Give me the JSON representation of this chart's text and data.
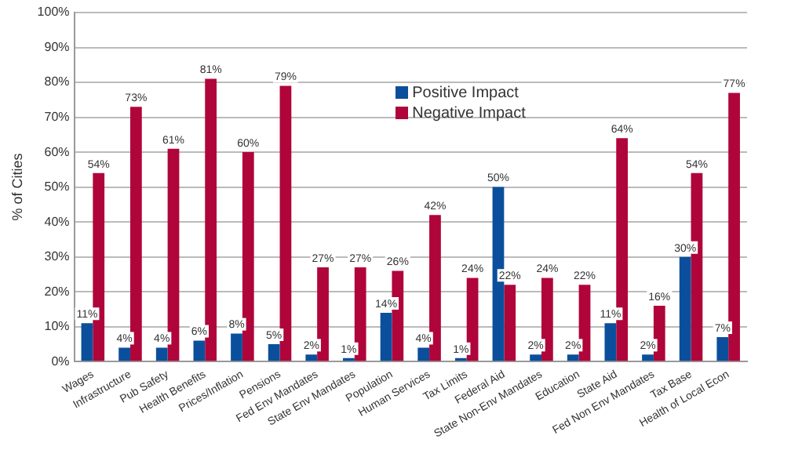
{
  "chart_data": {
    "type": "bar",
    "ylabel": "% of Cities",
    "categories": [
      "Wages",
      "Infrastructure",
      "Pub Safety",
      "Health Benefits",
      "Prices/Inflation",
      "Pensions",
      "Fed Env Mandates",
      "State Env Mandates",
      "Population",
      "Human Services",
      "Tax Limits",
      "Federal Aid",
      "State Non-Env Mandates",
      "Education",
      "State Aid",
      "Fed Non Env Mandates",
      "Tax Base",
      "Health of Local Econ"
    ],
    "series": [
      {
        "name": "Positive Impact",
        "color": "#0b4f9c",
        "values": [
          11,
          4,
          4,
          6,
          8,
          5,
          2,
          1,
          14,
          4,
          1,
          50,
          2,
          2,
          11,
          2,
          30,
          7
        ],
        "value_labels": [
          "11%",
          "4%",
          "4%",
          "6%",
          "8%",
          "5%",
          "2%",
          "1%",
          "14%",
          "4%",
          "1%",
          "50%",
          "2%",
          "2%",
          "11%",
          "2%",
          "30%",
          "7%"
        ]
      },
      {
        "name": "Negative Impact",
        "color": "#b0053a",
        "values": [
          54,
          73,
          61,
          81,
          60,
          79,
          27,
          27,
          26,
          42,
          24,
          22,
          24,
          22,
          64,
          16,
          54,
          77
        ],
        "value_labels": [
          "54%",
          "73%",
          "61%",
          "81%",
          "60%",
          "79%",
          "27%",
          "27%",
          "26%",
          "42%",
          "24%",
          "22%",
          "24%",
          "22%",
          "64%",
          "16%",
          "54%",
          "77%"
        ]
      }
    ],
    "ylim": [
      0,
      100
    ],
    "yticks": [
      {
        "value": 0,
        "label": "0%"
      },
      {
        "value": 10,
        "label": "10%"
      },
      {
        "value": 20,
        "label": "20%"
      },
      {
        "value": 30,
        "label": "30%"
      },
      {
        "value": 40,
        "label": "40%"
      },
      {
        "value": 50,
        "label": "50%"
      },
      {
        "value": 60,
        "label": "60%"
      },
      {
        "value": 70,
        "label": "70%"
      },
      {
        "value": 80,
        "label": "80%"
      },
      {
        "value": 90,
        "label": "90%"
      },
      {
        "value": 100,
        "label": "100%"
      }
    ],
    "grid": "y",
    "legend": "top"
  }
}
